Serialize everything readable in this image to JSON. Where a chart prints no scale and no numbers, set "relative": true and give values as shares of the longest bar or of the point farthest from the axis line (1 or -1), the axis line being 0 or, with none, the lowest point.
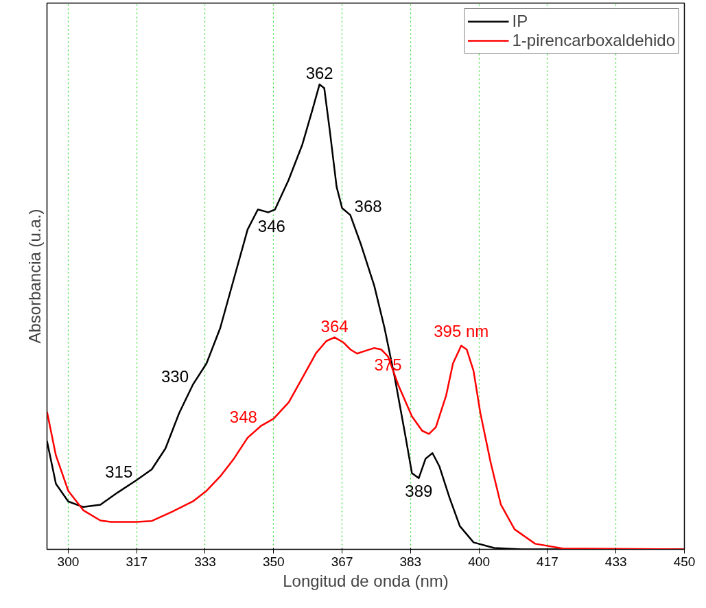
{
  "chart_data": {
    "type": "line",
    "relative": true,
    "xlabel": "Longitud de onda (nm)",
    "ylabel": "Absorbancia (u.a.)",
    "xlim": [
      294.83,
      450
    ],
    "xticks": [
      300,
      {
        "value": 316.67,
        "label": "317"
      },
      {
        "value": 333.33,
        "label": "333"
      },
      350,
      {
        "value": 366.67,
        "label": "367"
      },
      {
        "value": 383.33,
        "label": "383"
      },
      400,
      {
        "value": 416.67,
        "label": "417"
      },
      {
        "value": 433.33,
        "label": "433"
      },
      450
    ],
    "grid": "x",
    "legend": "top right",
    "tick_labels": "x",
    "line_style": "solid",
    "marker": "none",
    "series": [
      {
        "name": "IP",
        "color": "#000000",
        "x": [
          294.83,
          297,
          300,
          303.67,
          307.83,
          312,
          316.67,
          320.33,
          323.67,
          327,
          330.33,
          333.67,
          337,
          340.33,
          343.67,
          346.17,
          348.67,
          350.33,
          353.67,
          357,
          359.5,
          361.17,
          362.33,
          363.67,
          365.33,
          366.67,
          368.67,
          371.17,
          374.5,
          377,
          379.5,
          382,
          383.67,
          385.33,
          387,
          388.67,
          390.33,
          392.83,
          395.33,
          398.67,
          403.67,
          410.33,
          450
        ],
        "values": [
          0.233,
          0.141,
          0.103,
          0.091,
          0.096,
          0.122,
          0.149,
          0.172,
          0.217,
          0.293,
          0.354,
          0.4,
          0.476,
          0.582,
          0.688,
          0.731,
          0.725,
          0.731,
          0.795,
          0.871,
          0.947,
          1,
          0.992,
          0.901,
          0.78,
          0.734,
          0.719,
          0.658,
          0.567,
          0.476,
          0.369,
          0.248,
          0.164,
          0.153,
          0.195,
          0.207,
          0.179,
          0.111,
          0.05,
          0.015,
          0.003,
          0,
          0
        ]
      },
      {
        "name": "1-pirencarboxaldehido",
        "color": "#ff0000",
        "x": [
          294.83,
          297,
          300,
          303.67,
          307.83,
          310.33,
          316.67,
          320.33,
          325.33,
          330.33,
          333.67,
          337,
          340.33,
          343.67,
          347,
          350,
          353.67,
          357,
          360.33,
          362.83,
          364.83,
          367,
          368.67,
          370.33,
          372,
          374.5,
          376.17,
          377.83,
          380.33,
          383.67,
          386.17,
          387.83,
          389.5,
          392,
          393.67,
          395.67,
          397,
          398.67,
          400.33,
          402.83,
          405.33,
          408.67,
          413.67,
          420.33,
          450
        ],
        "values": [
          0.296,
          0.202,
          0.126,
          0.084,
          0.062,
          0.059,
          0.059,
          0.061,
          0.081,
          0.103,
          0.126,
          0.157,
          0.195,
          0.24,
          0.266,
          0.281,
          0.316,
          0.369,
          0.422,
          0.448,
          0.456,
          0.445,
          0.43,
          0.421,
          0.426,
          0.433,
          0.43,
          0.415,
          0.354,
          0.286,
          0.255,
          0.248,
          0.263,
          0.331,
          0.4,
          0.438,
          0.43,
          0.384,
          0.293,
          0.187,
          0.096,
          0.043,
          0.012,
          0.002,
          0
        ]
      }
    ],
    "annotations": [
      {
        "text": "315",
        "x": 316.67,
        "y": 0.149
      },
      {
        "text": "330",
        "x": 330.33,
        "y": 0.354
      },
      {
        "text": "346",
        "x": 346.17,
        "y": 0.731
      },
      {
        "text": "362",
        "x": 361.17,
        "y": 1
      },
      {
        "text": "368",
        "x": 368.67,
        "y": 0.719
      },
      {
        "text": "364",
        "x": 364.83,
        "y": 0.456
      },
      {
        "text": "348",
        "x": 347,
        "y": 0.266
      },
      {
        "text": "375",
        "x": 374.5,
        "y": 0.433
      },
      {
        "text": "389",
        "x": 385.33,
        "y": 0.153
      },
      {
        "text": "395 nm",
        "x": 395.67,
        "y": 0.438
      }
    ]
  }
}
